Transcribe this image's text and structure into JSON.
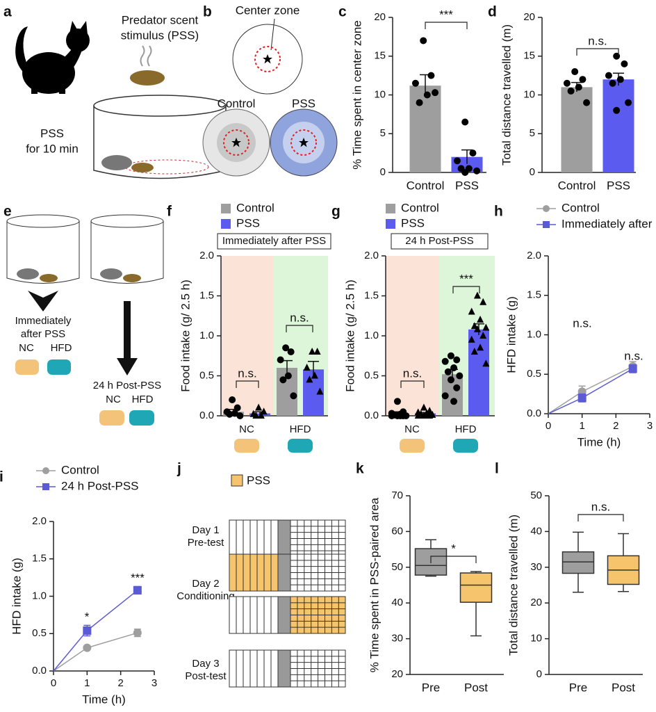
{
  "illustrations": {
    "a": {
      "panel": "a",
      "stimulus": [
        "Predator scent",
        "stimulus (PSS)"
      ],
      "duration": [
        "PSS",
        "for 10 min"
      ]
    },
    "b": {
      "panel": "b",
      "zone": "Center zone",
      "groups": [
        "Control",
        "PSS"
      ]
    },
    "e": {
      "panel": "e",
      "immediate": [
        "Immediately",
        "after PSS"
      ],
      "post": "24 h Post-PSS",
      "diets": [
        "NC",
        "HFD"
      ]
    },
    "j": {
      "panel": "j",
      "legend": "PSS",
      "days": [
        [
          "Day 1",
          "Pre-test"
        ],
        [
          "Day 2",
          "Conditioning"
        ],
        [
          "Day 3",
          "Post-test"
        ]
      ]
    }
  },
  "chart_data": [
    {
      "panel": "c",
      "type": "bar",
      "ylabel": "% Time spent in center zone",
      "categories": [
        "Control",
        "PSS"
      ],
      "values": [
        11.2,
        2.0
      ],
      "errors": [
        1.4,
        0.9
      ],
      "colors": [
        "#9e9e9e",
        "#5b5bf0"
      ],
      "points": [
        [
          17.0,
          12.5,
          11.5,
          10.0,
          9.0,
          10.3
        ],
        [
          6.5,
          2.5,
          1.5,
          0.5,
          0.5,
          0.2,
          0.0
        ]
      ],
      "ylim": [
        0,
        20
      ],
      "yticks": [
        0,
        5,
        10,
        15,
        20
      ],
      "annotations": [
        "***"
      ]
    },
    {
      "panel": "d",
      "type": "bar",
      "ylabel": "Total distance travelled (m)",
      "categories": [
        "Control",
        "PSS"
      ],
      "values": [
        11.0,
        12.0
      ],
      "errors": [
        0.6,
        0.8
      ],
      "colors": [
        "#9e9e9e",
        "#5b5bf0"
      ],
      "points": [
        [
          13.0,
          12.0,
          11.5,
          11.0,
          10.5,
          9.0
        ],
        [
          15.0,
          14.0,
          12.5,
          12.0,
          11.5,
          9.0,
          8.0
        ]
      ],
      "ylim": [
        0,
        20
      ],
      "yticks": [
        0,
        5,
        10,
        15,
        20
      ],
      "annotations": [
        "n.s."
      ]
    },
    {
      "panel": "f",
      "type": "bar",
      "title": "Immediately after PSS",
      "ylabel": "Food intake (g/ 2.5 h)",
      "categories": [
        "NC",
        "HFD"
      ],
      "band_colors": [
        "#fbe3d8",
        "#ddf5d8"
      ],
      "series": [
        {
          "name": "Control",
          "color": "#9e9e9e",
          "marker": "circle",
          "values": [
            0.05,
            0.6
          ],
          "errors": [
            0.03,
            0.09
          ],
          "points": [
            [
              0.2,
              0.1,
              0.05,
              0.03,
              0.02,
              0.0
            ],
            [
              0.85,
              0.8,
              0.7,
              0.5,
              0.45,
              0.25
            ]
          ]
        },
        {
          "name": "PSS",
          "color": "#5b5bf0",
          "marker": "triangle",
          "values": [
            0.03,
            0.58
          ],
          "errors": [
            0.02,
            0.1
          ],
          "points": [
            [
              0.1,
              0.05,
              0.02,
              0.0,
              0.0
            ],
            [
              0.8,
              0.8,
              0.6,
              0.5,
              0.45,
              0.3
            ]
          ]
        }
      ],
      "ylim": [
        0,
        2
      ],
      "yticks": [
        {
          "value": 0,
          "label": "0.0"
        },
        0.5,
        {
          "value": 1,
          "label": "1.0"
        },
        1.5,
        {
          "value": 2,
          "label": "2.0"
        }
      ],
      "annotations": [
        "n.s.",
        "n.s."
      ]
    },
    {
      "panel": "g",
      "type": "bar",
      "title": "24 h Post-PSS",
      "ylabel": "Food intake (g/ 2.5 h)",
      "categories": [
        "NC",
        "HFD"
      ],
      "band_colors": [
        "#fbe3d8",
        "#ddf5d8"
      ],
      "series": [
        {
          "name": "Control",
          "color": "#9e9e9e",
          "marker": "circle",
          "values": [
            0.03,
            0.52
          ],
          "errors": [
            0.02,
            0.06
          ],
          "points": [
            [
              0.18,
              0.05,
              0.03,
              0.02,
              0.01,
              0.0,
              0.0,
              0.0,
              0.0,
              0.0
            ],
            [
              0.75,
              0.7,
              0.68,
              0.6,
              0.55,
              0.5,
              0.45,
              0.35,
              0.25,
              0.18
            ]
          ]
        },
        {
          "name": "PSS",
          "color": "#5b5bf0",
          "marker": "triangle",
          "values": [
            0.03,
            1.08
          ],
          "errors": [
            0.01,
            0.07
          ],
          "points": [
            [
              0.1,
              0.06,
              0.04,
              0.03,
              0.02,
              0.01,
              0.0,
              0.0,
              0.0,
              0.0
            ],
            [
              1.5,
              1.42,
              1.3,
              1.2,
              1.12,
              1.1,
              1.08,
              1.0,
              0.95,
              0.85,
              0.8,
              0.65
            ]
          ]
        }
      ],
      "ylim": [
        0,
        2
      ],
      "yticks": [
        {
          "value": 0,
          "label": "0.0"
        },
        0.5,
        {
          "value": 1,
          "label": "1.0"
        },
        1.5,
        {
          "value": 2,
          "label": "2.0"
        }
      ],
      "annotations": [
        "n.s.",
        "***"
      ]
    },
    {
      "panel": "h",
      "type": "line",
      "xlabel": "Time (h)",
      "ylabel": "HFD intake (g)",
      "x": [
        0,
        1,
        2.5
      ],
      "series": [
        {
          "name": "Control",
          "color": "#9e9e9e",
          "marker": "circle",
          "values": [
            0,
            0.28,
            0.6
          ],
          "errors": [
            0,
            0.07,
            0.06
          ]
        },
        {
          "name": "Immediately after PSS",
          "color": "#5b5bd6",
          "marker": "square",
          "values": [
            0,
            0.2,
            0.57
          ],
          "errors": [
            0,
            0.05,
            0.05
          ]
        }
      ],
      "xlim": [
        0,
        3
      ],
      "xticks": [
        0,
        1,
        2,
        3
      ],
      "ylim": [
        0,
        2
      ],
      "yticks": [
        {
          "value": 0,
          "label": "0.0"
        },
        0.5,
        {
          "value": 1,
          "label": "1.0"
        },
        1.5,
        {
          "value": 2,
          "label": "2.0"
        }
      ],
      "annotations": [
        "n.s.",
        "n.s."
      ]
    },
    {
      "panel": "i",
      "type": "line",
      "xlabel": "Time (h)",
      "ylabel": "HFD intake (g)",
      "x": [
        0,
        1,
        2.5
      ],
      "series": [
        {
          "name": "Control",
          "color": "#9e9e9e",
          "marker": "circle",
          "values": [
            0,
            0.31,
            0.51
          ],
          "errors": [
            0,
            0.02,
            0.05
          ]
        },
        {
          "name": "24 h Post-PSS",
          "color": "#5b5bd6",
          "marker": "square",
          "values": [
            0,
            0.54,
            1.08
          ],
          "errors": [
            0,
            0.07,
            0.05
          ]
        }
      ],
      "xlim": [
        0,
        3
      ],
      "xticks": [
        0,
        1,
        2,
        3
      ],
      "ylim": [
        0,
        2
      ],
      "yticks": [
        {
          "value": 0,
          "label": "0.0"
        },
        0.5,
        {
          "value": 1,
          "label": "1.0"
        },
        1.5,
        {
          "value": 2,
          "label": "2.0"
        }
      ],
      "annotations": [
        "*",
        "***"
      ]
    },
    {
      "panel": "k",
      "type": "box",
      "ylabel": "% Time spent in PSS-paired area",
      "categories": [
        "Pre",
        "Post"
      ],
      "colors": [
        "#9e9e9e",
        "#f5c46c"
      ],
      "boxes": [
        {
          "min": 47.5,
          "q1": 47.8,
          "median": 50.5,
          "q3": 55.2,
          "max": 57.7
        },
        {
          "min": 30.8,
          "q1": 40.2,
          "median": 45,
          "q3": 48.4,
          "max": 48.8
        }
      ],
      "ylim": [
        20,
        70
      ],
      "yticks": [
        20,
        30,
        40,
        50,
        60,
        70
      ],
      "annotations": [
        "*"
      ]
    },
    {
      "panel": "l",
      "type": "box",
      "ylabel": "Total distance travelled (m)",
      "categories": [
        "Pre",
        "Post"
      ],
      "colors": [
        "#9e9e9e",
        "#f5c46c"
      ],
      "boxes": [
        {
          "min": 23,
          "q1": 28.3,
          "median": 31.5,
          "q3": 34.3,
          "max": 39.8
        },
        {
          "min": 23.2,
          "q1": 25.2,
          "median": 29.2,
          "q3": 33.2,
          "max": 39.4
        }
      ],
      "ylim": [
        0,
        50
      ],
      "yticks": [
        0,
        10,
        20,
        30,
        40,
        50
      ],
      "annotations": [
        "n.s."
      ]
    }
  ]
}
